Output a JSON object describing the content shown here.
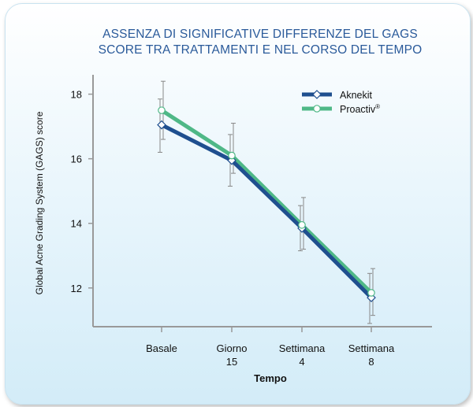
{
  "title_lines": [
    "ASSENZA DI SIGNIFICATIVE DIFFERENZE DEL GAGS",
    "SCORE TRA TRATTAMENTI E NEL CORSO DEL TEMPO"
  ],
  "chart_data": {
    "type": "line",
    "title": "ASSENZA DI SIGNIFICATIVE DIFFERENZE DEL GAGS SCORE TRA TRATTAMENTI E NEL CORSO DEL TEMPO",
    "xlabel": "Tempo",
    "ylabel": "Global Acne Grading System (GAGS) score",
    "categories": [
      [
        "Basale"
      ],
      [
        "Giorno",
        "15"
      ],
      [
        "Settimana",
        "4"
      ],
      [
        "Settimana",
        "8"
      ]
    ],
    "yticks": [
      "12",
      "14",
      "16",
      "18"
    ],
    "ylim": [
      10.8,
      18.6
    ],
    "grid": false,
    "legend_position": "top-right",
    "series": [
      {
        "name": "Aknekit",
        "values": [
          17.05,
          15.95,
          13.85,
          11.7
        ],
        "err_low": [
          16.2,
          15.15,
          13.15,
          10.9
        ],
        "err_high": [
          17.85,
          16.75,
          14.55,
          12.45
        ],
        "color": "#1f4f8f"
      },
      {
        "name": "Proactiv",
        "name_suffix": "®",
        "values": [
          17.5,
          16.1,
          13.95,
          11.85
        ],
        "err_low": [
          16.6,
          15.55,
          13.2,
          11.15
        ],
        "err_high": [
          18.4,
          17.1,
          14.8,
          12.6
        ],
        "color": "#4fb887"
      }
    ]
  }
}
